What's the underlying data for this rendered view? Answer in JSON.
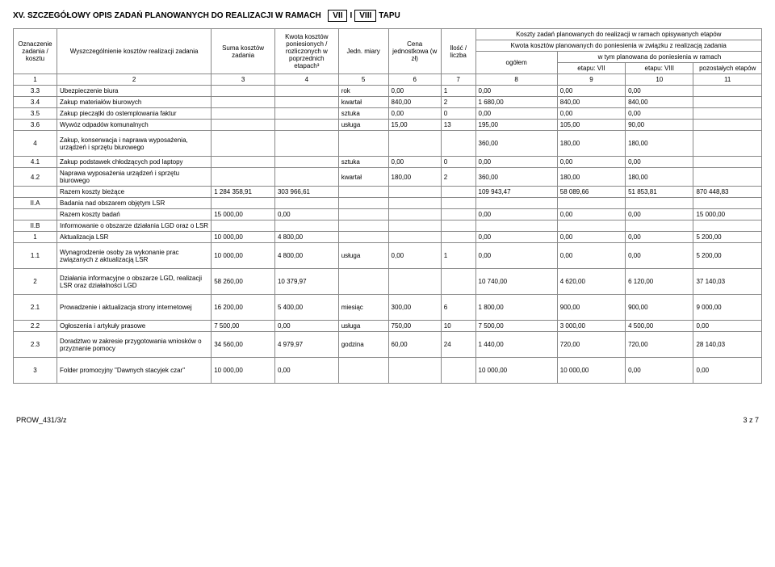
{
  "title": {
    "prefix": "XV. SZCZEGÓŁOWY OPIS ZADAŃ PLANOWANYCH DO REALIZACJI W RAMACH",
    "box1": "VII",
    "mid": "I",
    "box2": "VIII",
    "suffix": "TAPU"
  },
  "header": {
    "oznaczen": "Oznaczenie zadania / kosztu",
    "wyszczeg": "Wyszczególnienie kosztów realizacji zadania",
    "suma": "Suma kosztów zadania",
    "kwota": "Kwota kosztów poniesionych / rozliczonych w poprzednich etapach³",
    "jedn": "Jedn. miary",
    "cena": "Cena jednostkowa (w zł)",
    "ilosc": "Ilość / liczba",
    "koszty_top": "Koszty zadań planowanych do realizacji w ramach opisywanych etapów",
    "kwota_plan": "Kwota kosztów planowanych do poniesienia w związku z realizacją zadania",
    "ogolem": "ogółem",
    "wtym": "w tym planowana do poniesienia w ramach",
    "etap7": "etapu:    VII",
    "etap8": "etapu: VIII",
    "pozost": "pozostałych etapów",
    "nums": [
      "1",
      "2",
      "3",
      "4",
      "5",
      "6",
      "7",
      "8",
      "9",
      "10",
      "11"
    ]
  },
  "rows": [
    {
      "oz": "3.3",
      "desc": "Ubezpieczenie biura",
      "suma": "",
      "kwota": "",
      "jedn": "rok",
      "cena": "0,00",
      "ilosc": "1",
      "ogolem": "0,00",
      "e7": "0,00",
      "e8": "0,00",
      "poz": ""
    },
    {
      "oz": "3.4",
      "desc": "Zakup materiałów biurowych",
      "suma": "",
      "kwota": "",
      "jedn": "kwartał",
      "cena": "840,00",
      "ilosc": "2",
      "ogolem": "1 680,00",
      "e7": "840,00",
      "e8": "840,00",
      "poz": ""
    },
    {
      "oz": "3.5",
      "desc": "Zakup pieczątki do ostemplowania faktur",
      "suma": "",
      "kwota": "",
      "jedn": "sztuka",
      "cena": "0,00",
      "ilosc": "0",
      "ogolem": "0,00",
      "e7": "0,00",
      "e8": "0,00",
      "poz": ""
    },
    {
      "oz": "3.6",
      "desc": "Wywóz odpadów komunalnych",
      "suma": "",
      "kwota": "",
      "jedn": "usługa",
      "cena": "15,00",
      "ilosc": "13",
      "ogolem": "195,00",
      "e7": "105,00",
      "e8": "90,00",
      "poz": ""
    },
    {
      "oz": "4",
      "desc": "Zakup, konserwacja i naprawa wyposażenia, urządzeń i sprzętu biurowego",
      "suma": "",
      "kwota": "",
      "jedn": "",
      "cena": "",
      "ilosc": "",
      "ogolem": "360,00",
      "e7": "180,00",
      "e8": "180,00",
      "poz": "",
      "tall": true
    },
    {
      "oz": "4.1",
      "desc": "Zakup podstawek chłodzących pod laptopy",
      "suma": "",
      "kwota": "",
      "jedn": "sztuka",
      "cena": "0,00",
      "ilosc": "0",
      "ogolem": "0,00",
      "e7": "0,00",
      "e8": "0,00",
      "poz": ""
    },
    {
      "oz": "4.2",
      "desc": "Naprawa wyposażenia urządzeń i sprzętu biurowego",
      "suma": "",
      "kwota": "",
      "jedn": "kwartał",
      "cena": "180,00",
      "ilosc": "2",
      "ogolem": "360,00",
      "e7": "180,00",
      "e8": "180,00",
      "poz": ""
    },
    {
      "oz": "",
      "desc": "Razem koszty bieżące",
      "suma": "1 284 358,91",
      "kwota": "303 966,61",
      "jedn": "",
      "cena": "",
      "ilosc": "",
      "ogolem": "109 943,47",
      "e7": "58 089,66",
      "e8": "51 853,81",
      "poz": "870 448,83"
    },
    {
      "oz": "II.A",
      "desc": "Badania nad obszarem objętym LSR",
      "suma": "",
      "kwota": "",
      "jedn": "",
      "cena": "",
      "ilosc": "",
      "ogolem": "",
      "e7": "",
      "e8": "",
      "poz": ""
    },
    {
      "oz": "",
      "desc": "Razem koszty badań",
      "suma": "15 000,00",
      "kwota": "0,00",
      "jedn": "",
      "cena": "",
      "ilosc": "",
      "ogolem": "0,00",
      "e7": "0,00",
      "e8": "0,00",
      "poz": "15 000,00"
    },
    {
      "oz": "II.B",
      "desc": "Informowanie o obszarze działania LGD oraz o LSR",
      "suma": "",
      "kwota": "",
      "jedn": "",
      "cena": "",
      "ilosc": "",
      "ogolem": "",
      "e7": "",
      "e8": "",
      "poz": ""
    },
    {
      "oz": "1",
      "desc": "Aktualizacja LSR",
      "suma": "10 000,00",
      "kwota": "4 800,00",
      "jedn": "",
      "cena": "",
      "ilosc": "",
      "ogolem": "0,00",
      "e7": "0,00",
      "e8": "0,00",
      "poz": "5 200,00"
    },
    {
      "oz": "1.1",
      "desc": "Wynagrodzenie osoby za wykonanie prac związanych z aktualizacją LSR",
      "suma": "10 000,00",
      "kwota": "4 800,00",
      "jedn": "usługa",
      "cena": "0,00",
      "ilosc": "1",
      "ogolem": "0,00",
      "e7": "0,00",
      "e8": "0,00",
      "poz": "5 200,00",
      "tall": true
    },
    {
      "oz": "2",
      "desc": "Działania informacyjne o obszarze LGD, realizacji LSR oraz działalności LGD",
      "suma": "58 260,00",
      "kwota": "10 379,97",
      "jedn": "",
      "cena": "",
      "ilosc": "",
      "ogolem": "10 740,00",
      "e7": "4 620,00",
      "e8": "6 120,00",
      "poz": "37 140,03",
      "tall": true
    },
    {
      "oz": "2.1",
      "desc": "Prowadzenie i aktualizacja strony internetowej",
      "suma": "16 200,00",
      "kwota": "5 400,00",
      "jedn": "miesiąc",
      "cena": "300,00",
      "ilosc": "6",
      "ogolem": "1 800,00",
      "e7": "900,00",
      "e8": "900,00",
      "poz": "9 000,00",
      "tall": true
    },
    {
      "oz": "2.2",
      "desc": "Ogłoszenia i artykuły prasowe",
      "suma": "7 500,00",
      "kwota": "0,00",
      "jedn": "usługa",
      "cena": "750,00",
      "ilosc": "10",
      "ogolem": "7 500,00",
      "e7": "3 000,00",
      "e8": "4 500,00",
      "poz": "0,00"
    },
    {
      "oz": "2.3",
      "desc": "Doradztwo w zakresie przygotowania wniosków o przyznanie pomocy",
      "suma": "34 560,00",
      "kwota": "4 979,97",
      "jedn": "godzina",
      "cena": "60,00",
      "ilosc": "24",
      "ogolem": "1 440,00",
      "e7": "720,00",
      "e8": "720,00",
      "poz": "28 140,03",
      "tall": true
    },
    {
      "oz": "3",
      "desc": "Folder promocyjny \"Dawnych stacyjek czar\"",
      "suma": "10 000,00",
      "kwota": "0,00",
      "jedn": "",
      "cena": "",
      "ilosc": "",
      "ogolem": "10 000,00",
      "e7": "10 000,00",
      "e8": "0,00",
      "poz": "0,00",
      "tall": true
    }
  ],
  "footer": {
    "left": "PROW_431/3/z",
    "right": "3 z 7"
  }
}
